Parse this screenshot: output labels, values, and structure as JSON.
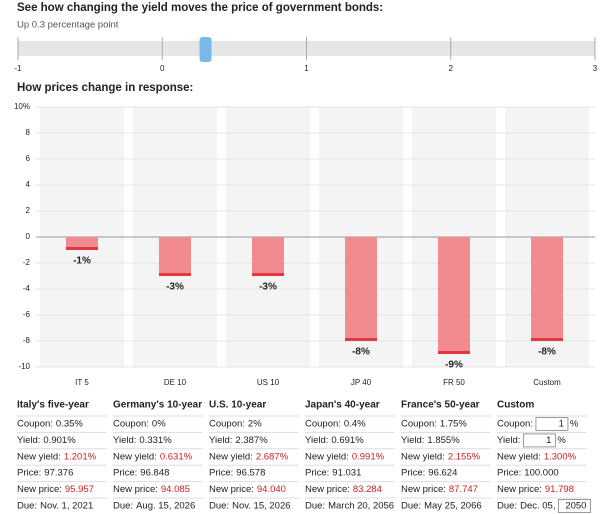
{
  "header": {
    "title": "See how changing the yield moves the price of government bonds:"
  },
  "slider": {
    "label": "Up 0.3 percentage point",
    "value": 0.3,
    "xlim": [
      -1,
      3
    ],
    "xticks": [
      -1,
      0,
      1,
      2,
      3
    ]
  },
  "chart_data": {
    "type": "bar",
    "title": "How prices change in response:",
    "categories": [
      "IT 5",
      "DE 10",
      "US 10",
      "JP 40",
      "FR 50",
      "Custom"
    ],
    "values": [
      -1,
      -3,
      -3,
      -8,
      -9,
      -8
    ],
    "value_labels": [
      "-1%",
      "-3%",
      "-3%",
      "-8%",
      "-9%",
      "-8%"
    ],
    "color": "#f28b8f",
    "edge_color": "#e2383f",
    "ylim": [
      -10,
      10
    ],
    "yticks": [
      {
        "value": 10,
        "label": "10%"
      },
      8,
      6,
      4,
      2,
      0,
      -2,
      -4,
      -6,
      -8,
      -10
    ],
    "grid": true
  },
  "table": {
    "columns": [
      {
        "title": "Italy's five-year",
        "rows": [
          {
            "label": "Coupon:",
            "value": "0.35%"
          },
          {
            "label": "Yield:",
            "value": "0.901%"
          },
          {
            "label": "New yield:",
            "value": "1.201%"
          },
          {
            "label": "Price:",
            "value": "97.376"
          },
          {
            "label": "New price:",
            "value": "95.957"
          },
          {
            "label": "Due:",
            "value": "Nov. 1, 2021"
          }
        ]
      },
      {
        "title": "Germany's 10-year",
        "rows": [
          {
            "label": "Coupon:",
            "value": "0%"
          },
          {
            "label": "Yield:",
            "value": "0.331%"
          },
          {
            "label": "New yield:",
            "value": "0.631%"
          },
          {
            "label": "Price:",
            "value": "96.848"
          },
          {
            "label": "New price:",
            "value": "94.085"
          },
          {
            "label": "Due:",
            "value": "Aug. 15, 2026"
          }
        ]
      },
      {
        "title": "U.S. 10-year",
        "rows": [
          {
            "label": "Coupon:",
            "value": "2%"
          },
          {
            "label": "Yield:",
            "value": "2.387%"
          },
          {
            "label": "New yield:",
            "value": "2.687%"
          },
          {
            "label": "Price:",
            "value": "96.578"
          },
          {
            "label": "New price:",
            "value": "94.040"
          },
          {
            "label": "Due:",
            "value": "Nov. 15, 2026"
          }
        ]
      },
      {
        "title": "Japan's 40-year",
        "rows": [
          {
            "label": "Coupon:",
            "value": "0.4%"
          },
          {
            "label": "Yield:",
            "value": "0.691%"
          },
          {
            "label": "New yield:",
            "value": "0.991%"
          },
          {
            "label": "Price:",
            "value": "91.031"
          },
          {
            "label": "New price:",
            "value": "83.284"
          },
          {
            "label": "Due:",
            "value": "March 20, 2056"
          }
        ]
      },
      {
        "title": "France's 50-year",
        "rows": [
          {
            "label": "Coupon:",
            "value": "1.75%"
          },
          {
            "label": "Yield:",
            "value": "1.855%"
          },
          {
            "label": "New yield:",
            "value": "2.155%"
          },
          {
            "label": "Price:",
            "value": "96.624"
          },
          {
            "label": "New price:",
            "value": "87.747"
          },
          {
            "label": "Due:",
            "value": "May 25, 2066"
          }
        ]
      },
      {
        "title": "Custom",
        "rows": [
          {
            "label": "Coupon:",
            "input": "1",
            "unit": "%"
          },
          {
            "label": "Yield:",
            "input": "1",
            "unit": "%"
          },
          {
            "label": "New yield:",
            "value": "1.300%"
          },
          {
            "label": "Price:",
            "value": "100.000"
          },
          {
            "label": "New price:",
            "value": "91.798"
          },
          {
            "label": "Due:",
            "value": "Dec. 05,",
            "input": "2050"
          }
        ]
      }
    ]
  }
}
